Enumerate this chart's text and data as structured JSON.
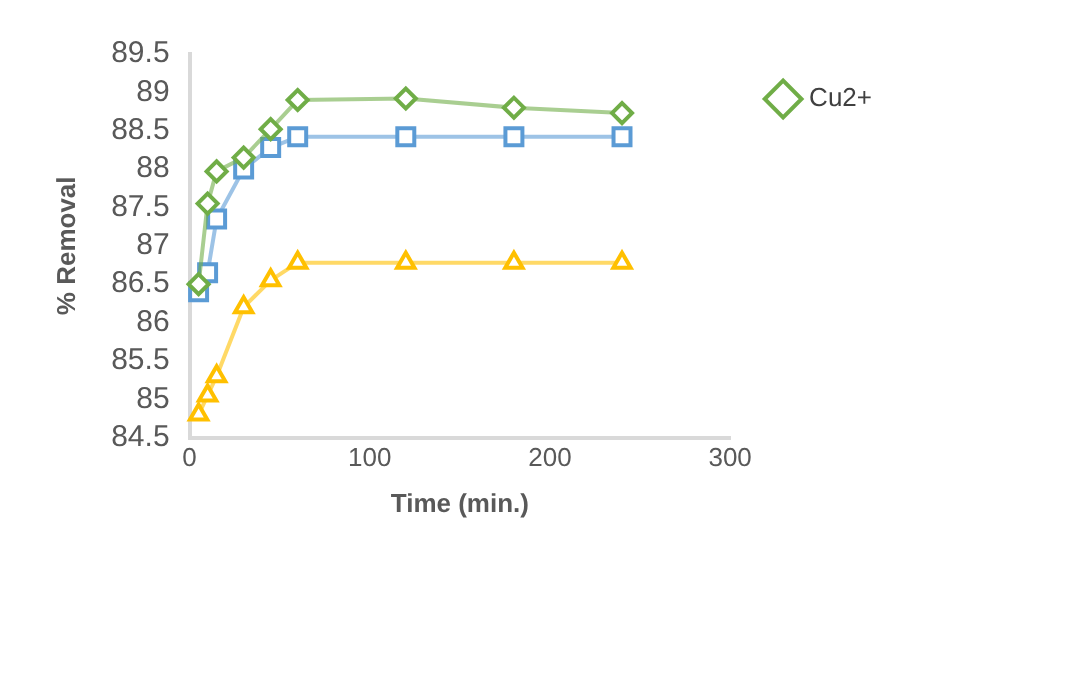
{
  "chart_data": {
    "type": "line",
    "xlabel": "Time (min.)",
    "ylabel": "% Removal",
    "x": [
      5,
      10,
      15,
      30,
      45,
      60,
      120,
      180,
      240
    ],
    "series": [
      {
        "name": "Cu2+",
        "color": "#70ad47",
        "marker": "diamond",
        "values": [
          86.5,
          87.55,
          87.97,
          88.15,
          88.52,
          88.9,
          88.92,
          88.8,
          88.73
        ]
      },
      {
        "color": "#5b9bd5",
        "marker": "square",
        "values": [
          86.4,
          86.65,
          87.35,
          88.0,
          88.28,
          88.42,
          88.42,
          88.42,
          88.42
        ]
      },
      {
        "color": "#ffc000",
        "marker": "triangle",
        "values": [
          84.8,
          85.05,
          85.3,
          86.2,
          86.55,
          86.78,
          86.78,
          86.78,
          86.78
        ]
      }
    ],
    "xlim": [
      0,
      300
    ],
    "xticks": [
      0,
      100,
      200,
      300
    ],
    "ylim": [
      84.5,
      89.5
    ],
    "yticks": [
      84.5,
      85,
      85.5,
      86,
      86.5,
      87,
      87.5,
      88,
      88.5,
      89,
      89.5
    ],
    "grid": false,
    "legend": "top right"
  }
}
